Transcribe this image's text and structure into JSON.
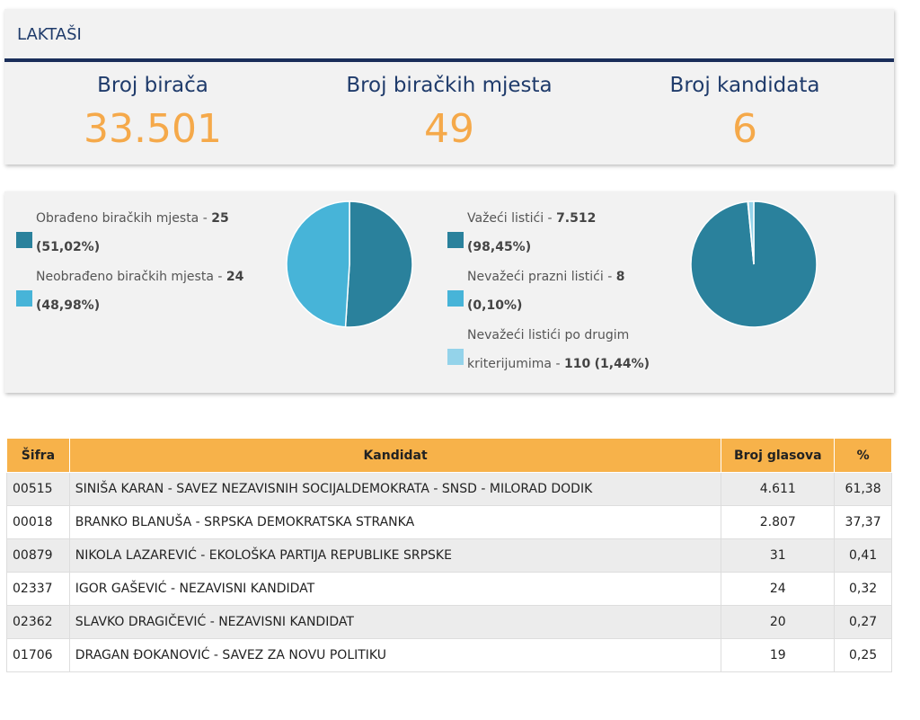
{
  "header": {
    "title": "LAKTAŠI"
  },
  "stats": [
    {
      "label": "Broj birača",
      "value": "33.501"
    },
    {
      "label": "Broj biračkih mjesta",
      "value": "49"
    },
    {
      "label": "Broj kandidata",
      "value": "6"
    }
  ],
  "pies": [
    {
      "type": "pie",
      "items": [
        {
          "label": "Obrađeno biračkih mjesta - ",
          "count": 25,
          "percent": "(51,02%)",
          "color": "#2a819c"
        },
        {
          "label": "Neobrađeno biračkih mjesta - ",
          "count": 24,
          "percent": "(48,98%)",
          "color": "#47b4d8"
        }
      ]
    },
    {
      "type": "pie",
      "items": [
        {
          "label": "Važeći listići - ",
          "count": {
            "value": 7512,
            "label": "7.512"
          },
          "percent": "(98,45%)",
          "color": "#2a819c"
        },
        {
          "label": "Nevažeći prazni listići - ",
          "count": 8,
          "percent": "(0,10%)",
          "color": "#47b4d8"
        },
        {
          "label": "Nevažeći listići po drugim kriterijumima - ",
          "count": 110,
          "percent": "(1,44%)",
          "color": "#94d3ea"
        }
      ]
    }
  ],
  "table": {
    "columns": [
      "Šifra",
      "Kandidat",
      "Broj glasova",
      "%"
    ],
    "rows": [
      [
        "00515",
        "SINIŠA KARAN - SAVEZ NEZAVISNIH SOCIJALDEMOKRATA - SNSD - MILORAD DODIK",
        "4.611",
        "61,38"
      ],
      [
        "00018",
        "BRANKO BLANUŠA - SRPSKA DEMOKRATSKA STRANKA",
        "2.807",
        "37,37"
      ],
      [
        "00879",
        "NIKOLA LAZAREVIĆ - EKOLOŠKA PARTIJA REPUBLIKE SRPSKE",
        "31",
        "0,41"
      ],
      [
        "02337",
        "IGOR GAŠEVIĆ - NEZAVISNI KANDIDAT",
        "24",
        "0,32"
      ],
      [
        "02362",
        "SLAVKO DRAGIČEVIĆ - NEZAVISNI KANDIDAT",
        "20",
        "0,27"
      ],
      [
        "01706",
        "DRAGAN ĐOKANOVIĆ - SAVEZ ZA NOVU POLITIKU",
        "19",
        "0,25"
      ]
    ]
  }
}
